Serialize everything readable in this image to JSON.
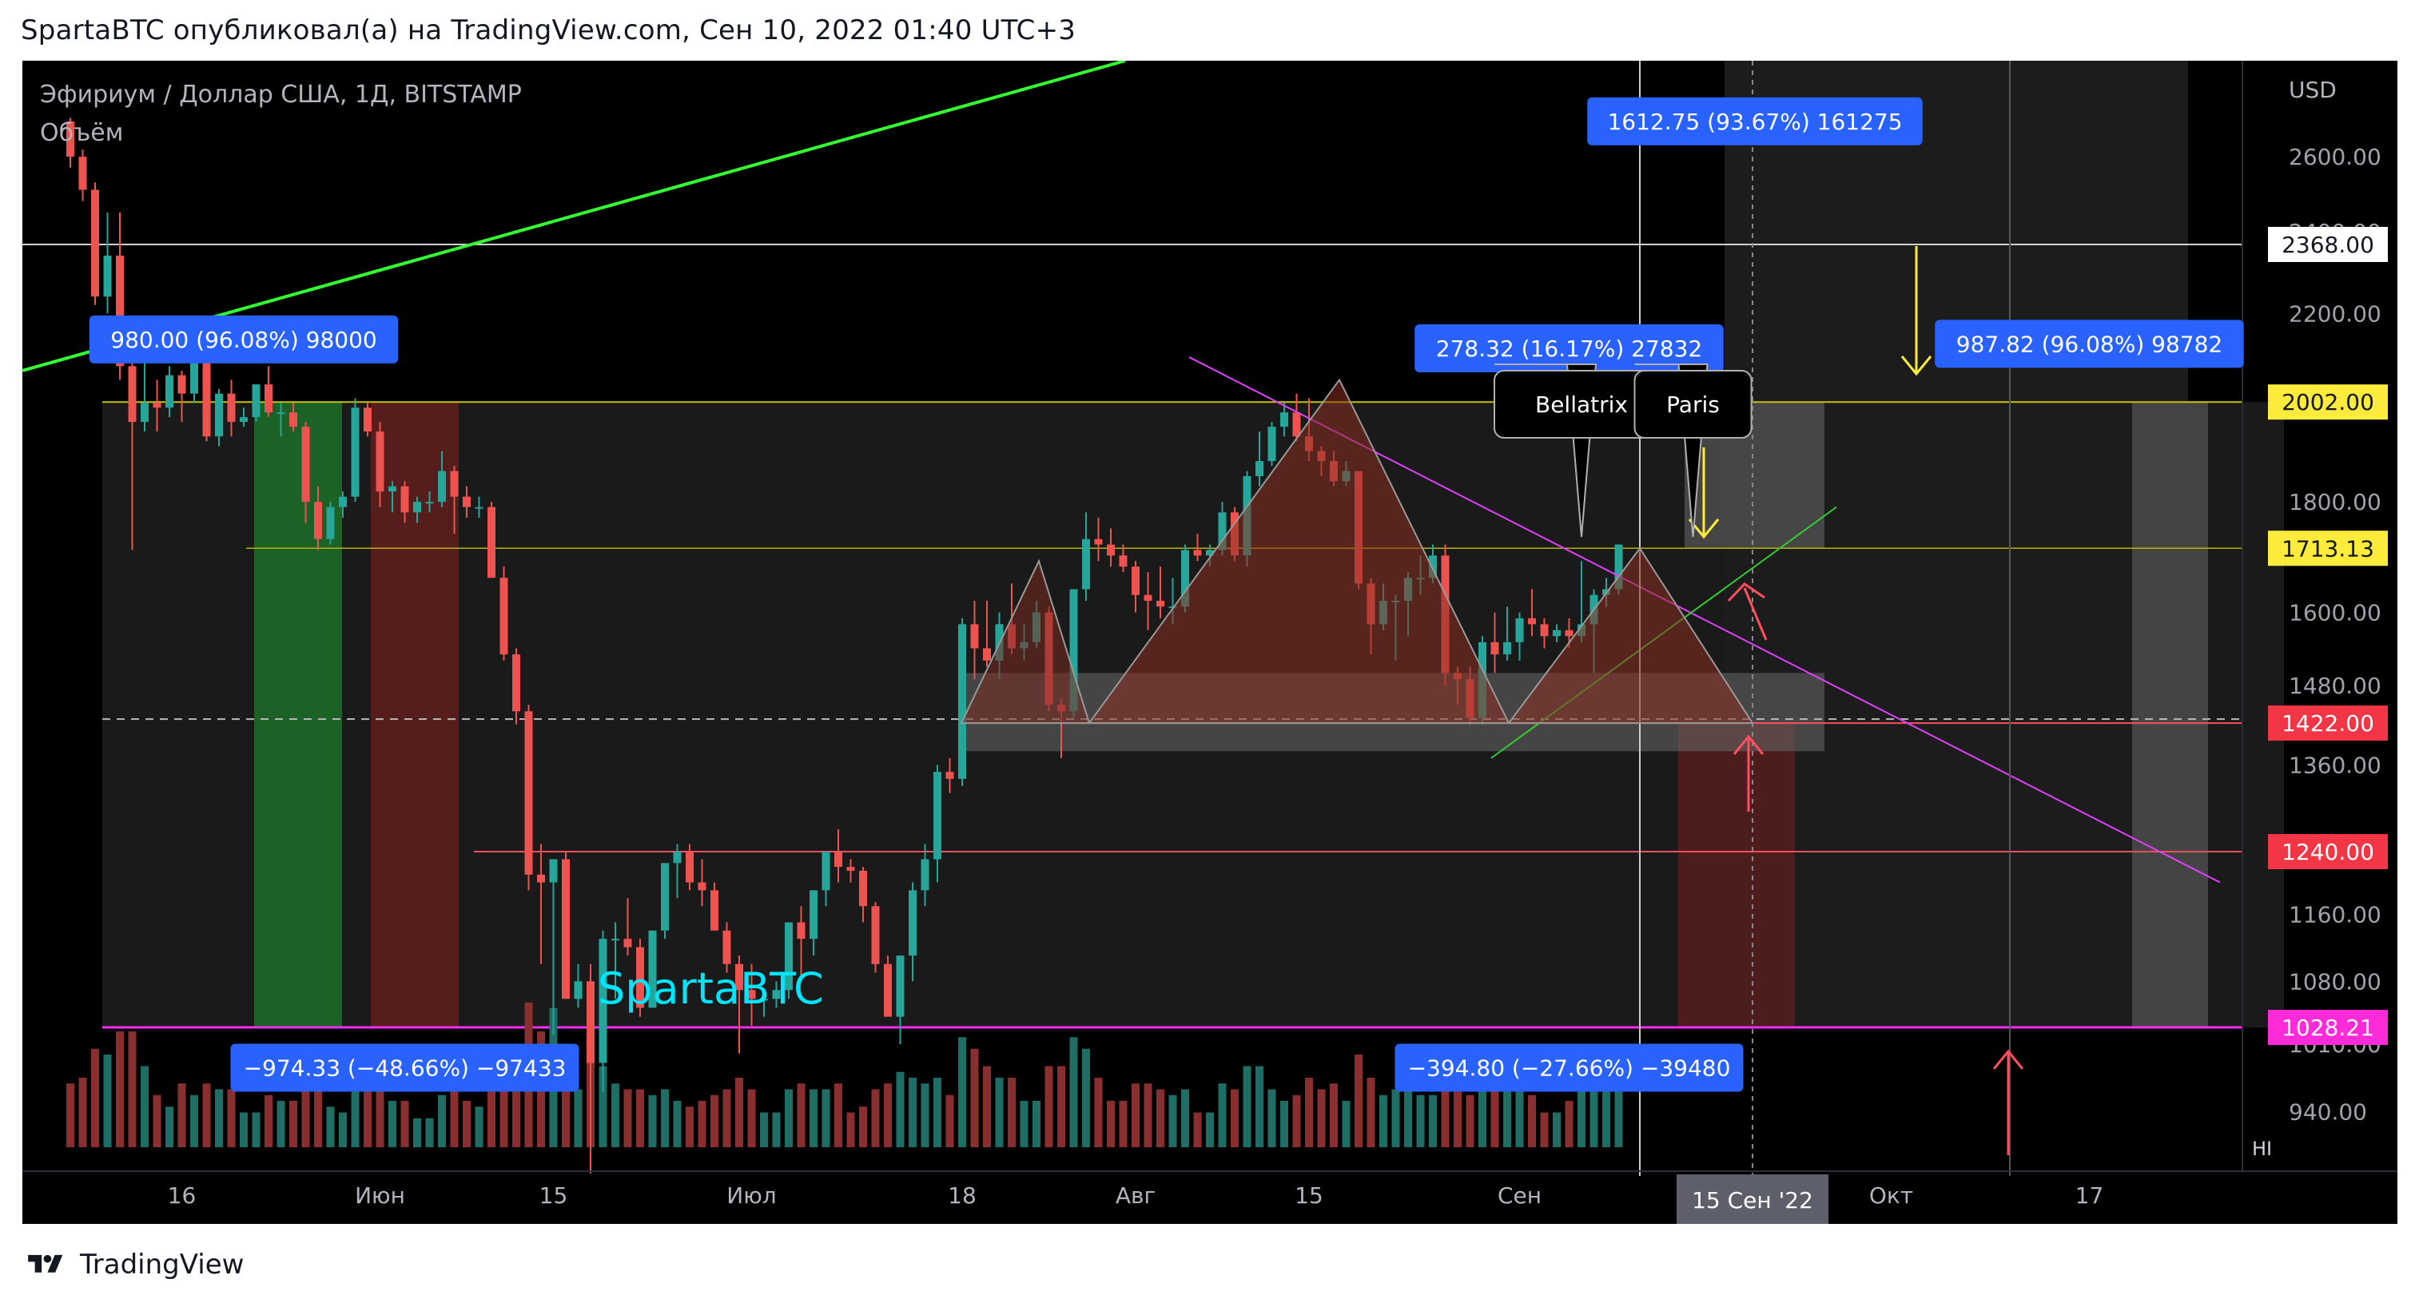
{
  "header": {
    "publisher": "SpartaBTC опубликовал(а) на TradingView.com, Сен 10, 2022 01:40 UTC+3"
  },
  "symbol": {
    "title": "Эфириум / Доллар США, 1Д, BITSTAMP",
    "volume_label": "Объём"
  },
  "watermark": "SpartaBTC",
  "footer": {
    "brand": "TradingView"
  },
  "colors": {
    "background": "#000000",
    "up": "#26a69a",
    "down": "#ef5350",
    "trendline_green": "#33ff33",
    "trendline_magenta": "#e040fb",
    "level_yellow": "#ffeb3b",
    "label_blue": "#2962ff"
  },
  "chart_data": {
    "type": "candlestick",
    "currency": "USD",
    "y_scale": "log",
    "ylim": [
      905,
      2880
    ],
    "price_ticks": [
      "2600.00",
      "2400.00",
      "2200.00",
      "1800.00",
      "1600.00",
      "1480.00",
      "1360.00",
      "1160.00",
      "1080.00",
      "1010.00",
      "940.00"
    ],
    "time_ticks": [
      {
        "label": "16",
        "date": "2022-05-16"
      },
      {
        "label": "Июн",
        "date": "2022-06-01"
      },
      {
        "label": "15",
        "date": "2022-06-15"
      },
      {
        "label": "Июл",
        "date": "2022-07-01"
      },
      {
        "label": "18",
        "date": "2022-07-18"
      },
      {
        "label": "Авг",
        "date": "2022-08-01"
      },
      {
        "label": "15",
        "date": "2022-08-15"
      },
      {
        "label": "Сен",
        "date": "2022-09-01"
      },
      {
        "label": "Окт",
        "date": "2022-10-01"
      },
      {
        "label": "17",
        "date": "2022-10-17"
      }
    ],
    "crosshair_date_label": "15 Сен '22",
    "hi_label": "HI",
    "levels": [
      {
        "label": "2368.00",
        "price": 2368,
        "style": "white"
      },
      {
        "label": "2002.00",
        "price": 2002,
        "style": "yellow"
      },
      {
        "label": "1713.13",
        "price": 1713.13,
        "style": "yellow"
      },
      {
        "label": "1422.00",
        "price": 1422,
        "style": "red"
      },
      {
        "label": "1240.00",
        "price": 1240,
        "style": "red"
      },
      {
        "label": "1028.21",
        "price": 1028.21,
        "style": "magenta"
      }
    ],
    "measure_labels": [
      {
        "text": "980.00 (96.08%) 98000",
        "date": "2022-05-21",
        "price": 2140
      },
      {
        "text": "−974.33 (−48.66%) −97433",
        "date": "2022-06-03",
        "price": 985
      },
      {
        "text": "278.32 (16.17%) 27832",
        "date": "2022-09-05",
        "price": 2120
      },
      {
        "text": "−394.80 (−27.66%) −39480",
        "date": "2022-09-05",
        "price": 985
      },
      {
        "text": "1612.75 (93.67%) 161275",
        "date": "2022-09-20",
        "price": 2700
      },
      {
        "text": "987.82 (96.08%) 98782",
        "date": "2022-10-17",
        "price": 2130
      }
    ],
    "callouts": [
      {
        "text": "Bellatrix",
        "date": "2022-09-06"
      },
      {
        "text": "Paris",
        "date": "2022-09-15"
      }
    ],
    "ohlc": [
      [
        "2022-05-07",
        2700,
        2710,
        2570,
        2600,
        0.55
      ],
      [
        "2022-05-08",
        2600,
        2620,
        2480,
        2510,
        0.6
      ],
      [
        "2022-05-09",
        2510,
        2530,
        2220,
        2240,
        0.85
      ],
      [
        "2022-05-10",
        2240,
        2450,
        2200,
        2340,
        0.8
      ],
      [
        "2022-05-11",
        2340,
        2450,
        2050,
        2080,
        1.0
      ],
      [
        "2022-05-12",
        2080,
        2100,
        1710,
        1960,
        1.0
      ],
      [
        "2022-05-13",
        1960,
        2120,
        1940,
        2000,
        0.7
      ],
      [
        "2022-05-14",
        2000,
        2050,
        1940,
        1990,
        0.45
      ],
      [
        "2022-05-15",
        1990,
        2080,
        1970,
        2060,
        0.35
      ],
      [
        "2022-05-16",
        2060,
        2070,
        1960,
        2020,
        0.55
      ],
      [
        "2022-05-17",
        2020,
        2110,
        2000,
        2090,
        0.45
      ],
      [
        "2022-05-18",
        2090,
        2100,
        1920,
        1930,
        0.55
      ],
      [
        "2022-05-19",
        1930,
        2030,
        1910,
        2020,
        0.5
      ],
      [
        "2022-05-20",
        2020,
        2050,
        1930,
        1960,
        0.5
      ],
      [
        "2022-05-21",
        1960,
        1990,
        1950,
        1970,
        0.3
      ],
      [
        "2022-05-22",
        1970,
        2040,
        1960,
        2040,
        0.3
      ],
      [
        "2022-05-23",
        2040,
        2080,
        1970,
        1980,
        0.45
      ],
      [
        "2022-05-24",
        1980,
        2000,
        1930,
        1980,
        0.4
      ],
      [
        "2022-05-25",
        1980,
        2000,
        1940,
        1950,
        0.4
      ],
      [
        "2022-05-26",
        1950,
        1960,
        1760,
        1800,
        0.7
      ],
      [
        "2022-05-27",
        1800,
        1830,
        1710,
        1730,
        0.6
      ],
      [
        "2022-05-28",
        1730,
        1800,
        1720,
        1790,
        0.35
      ],
      [
        "2022-05-29",
        1790,
        1820,
        1770,
        1810,
        0.3
      ],
      [
        "2022-05-30",
        1810,
        2010,
        1800,
        1990,
        0.65
      ],
      [
        "2022-05-31",
        1990,
        2000,
        1930,
        1940,
        0.55
      ],
      [
        "2022-06-01",
        1940,
        1960,
        1790,
        1820,
        0.6
      ],
      [
        "2022-06-02",
        1820,
        1840,
        1780,
        1830,
        0.4
      ],
      [
        "2022-06-03",
        1830,
        1840,
        1760,
        1780,
        0.4
      ],
      [
        "2022-06-04",
        1780,
        1810,
        1760,
        1800,
        0.25
      ],
      [
        "2022-06-05",
        1800,
        1820,
        1780,
        1800,
        0.25
      ],
      [
        "2022-06-06",
        1800,
        1900,
        1790,
        1860,
        0.45
      ],
      [
        "2022-06-07",
        1860,
        1870,
        1740,
        1810,
        0.5
      ],
      [
        "2022-06-08",
        1810,
        1830,
        1770,
        1790,
        0.4
      ],
      [
        "2022-06-09",
        1790,
        1810,
        1770,
        1790,
        0.35
      ],
      [
        "2022-06-10",
        1790,
        1800,
        1660,
        1660,
        0.55
      ],
      [
        "2022-06-11",
        1660,
        1680,
        1520,
        1530,
        0.65
      ],
      [
        "2022-06-12",
        1530,
        1540,
        1420,
        1440,
        0.75
      ],
      [
        "2022-06-13",
        1440,
        1450,
        1190,
        1210,
        1.25
      ],
      [
        "2022-06-14",
        1210,
        1250,
        1100,
        1200,
        1.0
      ],
      [
        "2022-06-15",
        1200,
        1230,
        1020,
        1230,
        1.2
      ],
      [
        "2022-06-16",
        1230,
        1240,
        1060,
        1060,
        0.8
      ],
      [
        "2022-06-17",
        1060,
        1100,
        1050,
        1080,
        0.5
      ],
      [
        "2022-06-18",
        1080,
        1100,
        880,
        990,
        1.0
      ],
      [
        "2022-06-19",
        990,
        1140,
        960,
        1130,
        0.7
      ],
      [
        "2022-06-20",
        1130,
        1150,
        1060,
        1130,
        0.55
      ],
      [
        "2022-06-21",
        1130,
        1180,
        1110,
        1120,
        0.5
      ],
      [
        "2022-06-22",
        1120,
        1130,
        1040,
        1050,
        0.5
      ],
      [
        "2022-06-23",
        1050,
        1140,
        1050,
        1140,
        0.45
      ],
      [
        "2022-06-24",
        1140,
        1220,
        1130,
        1225,
        0.5
      ],
      [
        "2022-06-25",
        1225,
        1250,
        1180,
        1240,
        0.4
      ],
      [
        "2022-06-26",
        1240,
        1250,
        1190,
        1200,
        0.35
      ],
      [
        "2022-06-27",
        1200,
        1230,
        1170,
        1190,
        0.4
      ],
      [
        "2022-06-28",
        1190,
        1200,
        1140,
        1140,
        0.45
      ],
      [
        "2022-06-29",
        1140,
        1150,
        1090,
        1100,
        0.5
      ],
      [
        "2022-06-30",
        1100,
        1110,
        1000,
        1070,
        0.6
      ],
      [
        "2022-07-01",
        1070,
        1100,
        1030,
        1060,
        0.5
      ],
      [
        "2022-07-02",
        1060,
        1070,
        1040,
        1060,
        0.3
      ],
      [
        "2022-07-03",
        1060,
        1080,
        1050,
        1070,
        0.3
      ],
      [
        "2022-07-04",
        1070,
        1150,
        1060,
        1150,
        0.5
      ],
      [
        "2022-07-05",
        1150,
        1170,
        1080,
        1130,
        0.55
      ],
      [
        "2022-07-06",
        1130,
        1190,
        1110,
        1190,
        0.5
      ],
      [
        "2022-07-07",
        1190,
        1240,
        1170,
        1240,
        0.5
      ],
      [
        "2022-07-08",
        1240,
        1270,
        1200,
        1220,
        0.55
      ],
      [
        "2022-07-09",
        1220,
        1230,
        1200,
        1215,
        0.3
      ],
      [
        "2022-07-10",
        1215,
        1220,
        1150,
        1170,
        0.35
      ],
      [
        "2022-07-11",
        1170,
        1175,
        1090,
        1100,
        0.5
      ],
      [
        "2022-07-12",
        1100,
        1110,
        1040,
        1040,
        0.55
      ],
      [
        "2022-07-13",
        1040,
        1110,
        1010,
        1110,
        0.65
      ],
      [
        "2022-07-14",
        1110,
        1200,
        1080,
        1190,
        0.6
      ],
      [
        "2022-07-15",
        1190,
        1250,
        1170,
        1230,
        0.55
      ],
      [
        "2022-07-16",
        1230,
        1360,
        1200,
        1350,
        0.6
      ],
      [
        "2022-07-17",
        1350,
        1370,
        1320,
        1340,
        0.45
      ],
      [
        "2022-07-18",
        1340,
        1590,
        1330,
        1580,
        0.95
      ],
      [
        "2022-07-19",
        1580,
        1620,
        1490,
        1540,
        0.85
      ],
      [
        "2022-07-20",
        1540,
        1620,
        1510,
        1520,
        0.7
      ],
      [
        "2022-07-21",
        1520,
        1600,
        1490,
        1580,
        0.6
      ],
      [
        "2022-07-22",
        1580,
        1650,
        1530,
        1540,
        0.6
      ],
      [
        "2022-07-23",
        1540,
        1580,
        1520,
        1550,
        0.4
      ],
      [
        "2022-07-24",
        1550,
        1620,
        1540,
        1600,
        0.4
      ],
      [
        "2022-07-25",
        1600,
        1610,
        1440,
        1450,
        0.7
      ],
      [
        "2022-07-26",
        1450,
        1460,
        1370,
        1440,
        0.7
      ],
      [
        "2022-07-27",
        1440,
        1640,
        1430,
        1640,
        0.95
      ],
      [
        "2022-07-28",
        1640,
        1780,
        1620,
        1730,
        0.85
      ],
      [
        "2022-07-29",
        1730,
        1770,
        1690,
        1720,
        0.6
      ],
      [
        "2022-07-30",
        1720,
        1750,
        1680,
        1700,
        0.4
      ],
      [
        "2022-07-31",
        1700,
        1720,
        1670,
        1680,
        0.4
      ],
      [
        "2022-08-01",
        1680,
        1690,
        1600,
        1630,
        0.55
      ],
      [
        "2022-08-02",
        1630,
        1670,
        1570,
        1620,
        0.55
      ],
      [
        "2022-08-03",
        1620,
        1680,
        1590,
        1610,
        0.5
      ],
      [
        "2022-08-04",
        1610,
        1660,
        1580,
        1610,
        0.45
      ],
      [
        "2022-08-05",
        1610,
        1720,
        1600,
        1710,
        0.5
      ],
      [
        "2022-08-06",
        1710,
        1740,
        1690,
        1700,
        0.3
      ],
      [
        "2022-08-07",
        1700,
        1720,
        1680,
        1710,
        0.3
      ],
      [
        "2022-08-08",
        1710,
        1800,
        1700,
        1780,
        0.55
      ],
      [
        "2022-08-09",
        1780,
        1790,
        1690,
        1700,
        0.5
      ],
      [
        "2022-08-10",
        1700,
        1860,
        1680,
        1850,
        0.7
      ],
      [
        "2022-08-11",
        1850,
        1940,
        1830,
        1880,
        0.7
      ],
      [
        "2022-08-12",
        1880,
        1960,
        1870,
        1950,
        0.5
      ],
      [
        "2022-08-13",
        1950,
        2000,
        1930,
        1980,
        0.4
      ],
      [
        "2022-08-14",
        1980,
        2020,
        1920,
        1930,
        0.45
      ],
      [
        "2022-08-15",
        1930,
        2010,
        1880,
        1900,
        0.6
      ],
      [
        "2022-08-16",
        1900,
        1910,
        1850,
        1880,
        0.5
      ],
      [
        "2022-08-17",
        1880,
        1900,
        1830,
        1840,
        0.55
      ],
      [
        "2022-08-18",
        1840,
        1880,
        1830,
        1860,
        0.4
      ],
      [
        "2022-08-19",
        1860,
        1860,
        1640,
        1650,
        0.8
      ],
      [
        "2022-08-20",
        1650,
        1660,
        1530,
        1580,
        0.6
      ],
      [
        "2022-08-21",
        1580,
        1650,
        1570,
        1620,
        0.45
      ],
      [
        "2022-08-22",
        1620,
        1630,
        1520,
        1620,
        0.5
      ],
      [
        "2022-08-23",
        1620,
        1670,
        1560,
        1660,
        0.5
      ],
      [
        "2022-08-24",
        1660,
        1700,
        1630,
        1660,
        0.45
      ],
      [
        "2022-08-25",
        1660,
        1720,
        1650,
        1700,
        0.45
      ],
      [
        "2022-08-26",
        1700,
        1720,
        1480,
        1500,
        0.75
      ],
      [
        "2022-08-27",
        1500,
        1510,
        1450,
        1490,
        0.5
      ],
      [
        "2022-08-28",
        1490,
        1510,
        1420,
        1430,
        0.45
      ],
      [
        "2022-08-29",
        1430,
        1560,
        1420,
        1550,
        0.6
      ],
      [
        "2022-08-30",
        1550,
        1600,
        1500,
        1530,
        0.55
      ],
      [
        "2022-08-31",
        1530,
        1610,
        1520,
        1550,
        0.5
      ],
      [
        "2022-09-01",
        1550,
        1600,
        1520,
        1590,
        0.5
      ],
      [
        "2022-09-02",
        1590,
        1640,
        1560,
        1580,
        0.45
      ],
      [
        "2022-09-03",
        1580,
        1590,
        1540,
        1560,
        0.3
      ],
      [
        "2022-09-04",
        1560,
        1580,
        1550,
        1570,
        0.3
      ],
      [
        "2022-09-05",
        1570,
        1590,
        1540,
        1560,
        0.4
      ],
      [
        "2022-09-06",
        1560,
        1690,
        1550,
        1580,
        0.7
      ],
      [
        "2022-09-07",
        1580,
        1640,
        1500,
        1630,
        0.65
      ],
      [
        "2022-09-08",
        1630,
        1660,
        1610,
        1640,
        0.5
      ],
      [
        "2022-09-09",
        1640,
        1720,
        1630,
        1720,
        0.55
      ]
    ]
  }
}
